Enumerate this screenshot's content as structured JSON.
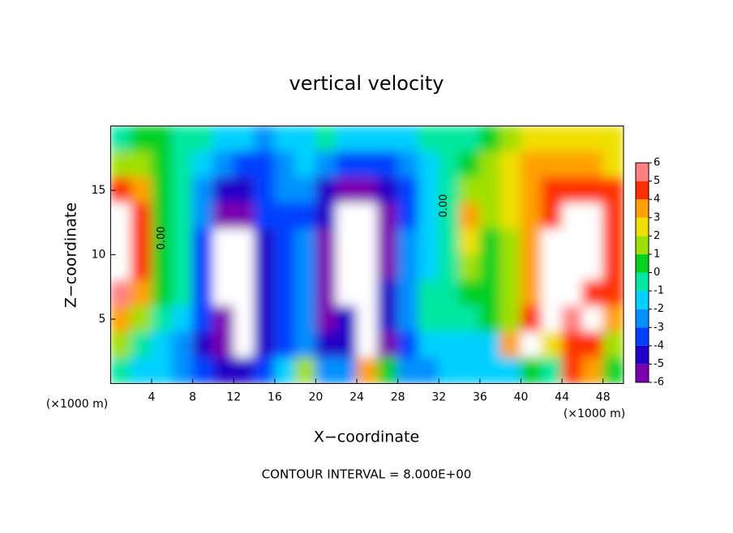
{
  "chart_data": {
    "type": "contourf",
    "title": "vertical velocity",
    "x_label": "X−coordinate",
    "y_label": "Z−coordinate",
    "x_unit_label": "(×1000 m)",
    "y_unit_label": "(×1000 m)",
    "footer": "CONTOUR INTERVAL = 8.000E+00",
    "xlim": [
      0,
      50
    ],
    "ylim": [
      0,
      20
    ],
    "xticks": [
      4,
      8,
      12,
      16,
      20,
      24,
      28,
      32,
      36,
      40,
      44,
      48
    ],
    "yticks": [
      5,
      10,
      15
    ],
    "levels": [
      -6,
      -5,
      -4,
      -3,
      -2,
      -1,
      0,
      1,
      2,
      3,
      4,
      5,
      6
    ],
    "colors": [
      "#7d00b0",
      "#2000c8",
      "#0040ff",
      "#0090ff",
      "#00d0ff",
      "#00e8a0",
      "#00d020",
      "#a0e000",
      "#f0e000",
      "#ffa000",
      "#ff3000",
      "#ff8080"
    ],
    "out_of_range_color": "#ffffff",
    "annotations": [
      {
        "text": "0.00",
        "x": 5,
        "z": 11.3
      },
      {
        "text": "0.00",
        "x": 32.5,
        "z": 13.8
      }
    ],
    "x": [
      1,
      3,
      5,
      7,
      9,
      11,
      13,
      15,
      17,
      19,
      21,
      23,
      25,
      27,
      29,
      31,
      33,
      35,
      37,
      39,
      41,
      43,
      45,
      47,
      49
    ],
    "z": [
      19,
      17,
      15,
      13,
      11,
      9,
      7,
      5,
      3,
      1
    ],
    "values": [
      [
        0,
        0.5,
        0.5,
        0,
        0,
        -1,
        -1.5,
        -2,
        -1.5,
        -1,
        -0.5,
        -1,
        -1.5,
        -1.5,
        -1,
        -0.5,
        0,
        0,
        0.5,
        1.5,
        2.5,
        3,
        3,
        3,
        2.5
      ],
      [
        2,
        1.5,
        0.5,
        0,
        -1,
        -2.5,
        -3.5,
        -3,
        -2,
        -1.5,
        -2,
        -3,
        -3.5,
        -3,
        -2,
        -1,
        0,
        1,
        2,
        3,
        3.5,
        3.5,
        3.5,
        3.5,
        3
      ],
      [
        5,
        4,
        1,
        0,
        -2,
        -4,
        -4.5,
        -3,
        -2.5,
        -2.5,
        -4,
        -5,
        -5,
        -4.5,
        -3,
        -1,
        0,
        1.5,
        2,
        3,
        4,
        4.5,
        5,
        5,
        4.5
      ],
      [
        7,
        5,
        1,
        -0.5,
        -2.5,
        -5,
        -5.5,
        -3.5,
        -3,
        -3,
        -4.5,
        -7,
        -7,
        -5.5,
        -3,
        -1,
        0,
        3.5,
        1.5,
        2.5,
        4,
        5,
        7,
        7,
        5
      ],
      [
        7,
        5,
        1,
        -0.5,
        -3,
        -7,
        -7,
        -4,
        -3,
        -2,
        -5,
        -7,
        -7,
        -5,
        -2.5,
        -1,
        0,
        3,
        1,
        2,
        3.5,
        7,
        7,
        7,
        5
      ],
      [
        7,
        5,
        1,
        -0.5,
        -3,
        -7,
        -7,
        -4,
        -3,
        -2,
        -5,
        -7,
        -7,
        -5,
        -2.5,
        -1,
        0,
        1.5,
        1,
        1.5,
        4,
        7,
        7,
        7,
        5
      ],
      [
        6,
        4,
        0.5,
        -0.5,
        -3,
        -7,
        -7,
        -4,
        -3,
        -2,
        -5,
        -7,
        -7,
        -4.5,
        -2,
        -0.5,
        0,
        0.5,
        1,
        1.5,
        4,
        7,
        7,
        5,
        5
      ],
      [
        4,
        2,
        0,
        -1,
        -3.5,
        -6,
        -6.5,
        -4,
        -3,
        -2,
        -5.5,
        -4,
        -7,
        -4,
        -2,
        -0.5,
        0,
        -0.5,
        0.5,
        2,
        4.5,
        7,
        6,
        7,
        4
      ],
      [
        2,
        0,
        -1,
        -2,
        -4,
        -5,
        -7,
        -4.5,
        -3,
        -2,
        -4.5,
        -4,
        -7,
        -5,
        -3,
        -1,
        -1,
        -1.5,
        -1,
        4,
        7,
        3,
        5,
        5,
        2
      ],
      [
        0,
        -1,
        -1.5,
        -2,
        -3,
        -4,
        -4,
        -3,
        -1,
        1.5,
        -2,
        -2,
        4,
        1,
        -2,
        -2,
        -1,
        -1.5,
        -1.5,
        -1,
        1,
        -0.5,
        5,
        4,
        1
      ]
    ]
  }
}
